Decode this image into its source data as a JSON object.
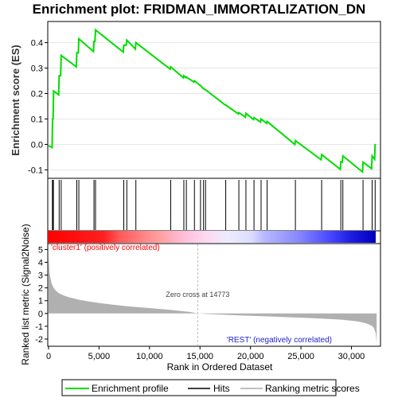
{
  "chart_data": {
    "type": "line",
    "title": "Enrichment plot: FRIDMAN_IMMORTALIZATION_DN",
    "xlabel": "Rank in Ordered Dataset",
    "ylabel_top": "Enrichment score (ES)",
    "ylabel_bottom": "Ranked list metric (Signal2Noise)",
    "x_ticks": [
      0,
      5000,
      10000,
      15000,
      20000,
      25000,
      30000
    ],
    "x_tick_labels": [
      "0",
      "5,000",
      "10,000",
      "15,000",
      "20,000",
      "25,000",
      "30,000"
    ],
    "xlim": [
      0,
      32800
    ],
    "es_ylim": [
      -0.13,
      0.48
    ],
    "es_ticks": [
      -0.1,
      0.0,
      0.1,
      0.2,
      0.3,
      0.4
    ],
    "es_tick_labels": [
      "-0.1",
      "0.0",
      "0.1",
      "0.2",
      "0.3",
      "0.4"
    ],
    "metric_ylim": [
      -2.5,
      5.4
    ],
    "metric_ticks": [
      -2,
      -1,
      0,
      1,
      2,
      3,
      4,
      5
    ],
    "metric_tick_labels": [
      "-2",
      "-1",
      "0",
      "1",
      "2",
      "3",
      "4",
      "5"
    ],
    "es_series": {
      "name": "Enrichment profile",
      "color": "#00dd00",
      "x": [
        0,
        350,
        400,
        450,
        500,
        1000,
        1050,
        1200,
        1250,
        2750,
        2800,
        2950,
        3000,
        4450,
        4500,
        4600,
        4650,
        7400,
        7450,
        7700,
        7750,
        8600,
        8650,
        12050,
        12100,
        13350,
        13400,
        13600,
        13650,
        14400,
        14450,
        15000,
        15050,
        15300,
        15350,
        15500,
        15550,
        17500,
        17550,
        18800,
        18850,
        19500,
        19550,
        20300,
        20350,
        21000,
        21050,
        21600,
        21650,
        24400,
        24450,
        27000,
        27050,
        28900,
        28950,
        29100,
        29150,
        31100,
        31150,
        32000,
        32050,
        32300,
        32350
      ],
      "y": [
        -0.005,
        -0.012,
        0.1,
        0.1,
        0.21,
        0.195,
        0.27,
        0.27,
        0.35,
        0.305,
        0.36,
        0.36,
        0.415,
        0.365,
        0.405,
        0.405,
        0.45,
        0.363,
        0.39,
        0.39,
        0.41,
        0.375,
        0.4,
        0.296,
        0.305,
        0.262,
        0.27,
        0.262,
        0.265,
        0.245,
        0.25,
        0.232,
        0.232,
        0.22,
        0.22,
        0.215,
        0.215,
        0.155,
        0.155,
        0.12,
        0.125,
        0.107,
        0.122,
        0.098,
        0.105,
        0.088,
        0.1,
        0.083,
        0.09,
        0.0,
        0.015,
        -0.06,
        -0.04,
        -0.098,
        -0.068,
        -0.07,
        -0.045,
        -0.108,
        -0.07,
        -0.095,
        -0.045,
        -0.058,
        0.002
      ]
    },
    "hits": {
      "name": "Hits",
      "x": [
        380,
        420,
        480,
        1050,
        1250,
        2800,
        3000,
        4500,
        4650,
        7450,
        7750,
        8650,
        12100,
        13400,
        13650,
        14450,
        15050,
        15350,
        15550,
        17550,
        18850,
        19550,
        20350,
        21050,
        21650,
        24450,
        27050,
        28950,
        29150,
        31150,
        32050,
        32350
      ]
    },
    "metric_series": {
      "name": "Ranking metric scores",
      "color": "#b0b0b0",
      "x": [
        0,
        40,
        100,
        200,
        300,
        500,
        700,
        1000,
        1500,
        2000,
        3000,
        4000,
        5000,
        6000,
        8000,
        10000,
        12000,
        14000,
        14773,
        16000,
        18000,
        20000,
        22000,
        24000,
        26000,
        27000,
        28000,
        29000,
        30000,
        30500,
        31000,
        31500,
        32000,
        32200,
        32400,
        32500
      ],
      "y": [
        4.6,
        4.0,
        3.2,
        2.7,
        2.35,
        2.0,
        1.8,
        1.6,
        1.4,
        1.27,
        1.08,
        0.94,
        0.82,
        0.72,
        0.55,
        0.42,
        0.28,
        0.12,
        0.0,
        -0.05,
        -0.12,
        -0.18,
        -0.24,
        -0.3,
        -0.36,
        -0.4,
        -0.44,
        -0.49,
        -0.56,
        -0.61,
        -0.68,
        -0.78,
        -0.95,
        -1.1,
        -1.5,
        -2.3
      ]
    },
    "annotations": {
      "zero_cross_label": "Zero cross at 14773",
      "zero_cross_x": 14773,
      "pos_label": "'cluster1' (positively correlated)",
      "neg_label": "'REST' (negatively correlated)",
      "pos_color": "#ff0000",
      "neg_color": "#0000ff"
    },
    "legend": {
      "placement": "bottom",
      "items": [
        {
          "label": "Enrichment profile",
          "color": "#00dd00"
        },
        {
          "label": "Hits",
          "color": "#000000"
        },
        {
          "label": "Ranking metric scores",
          "color": "#c0c0c0"
        }
      ]
    }
  }
}
